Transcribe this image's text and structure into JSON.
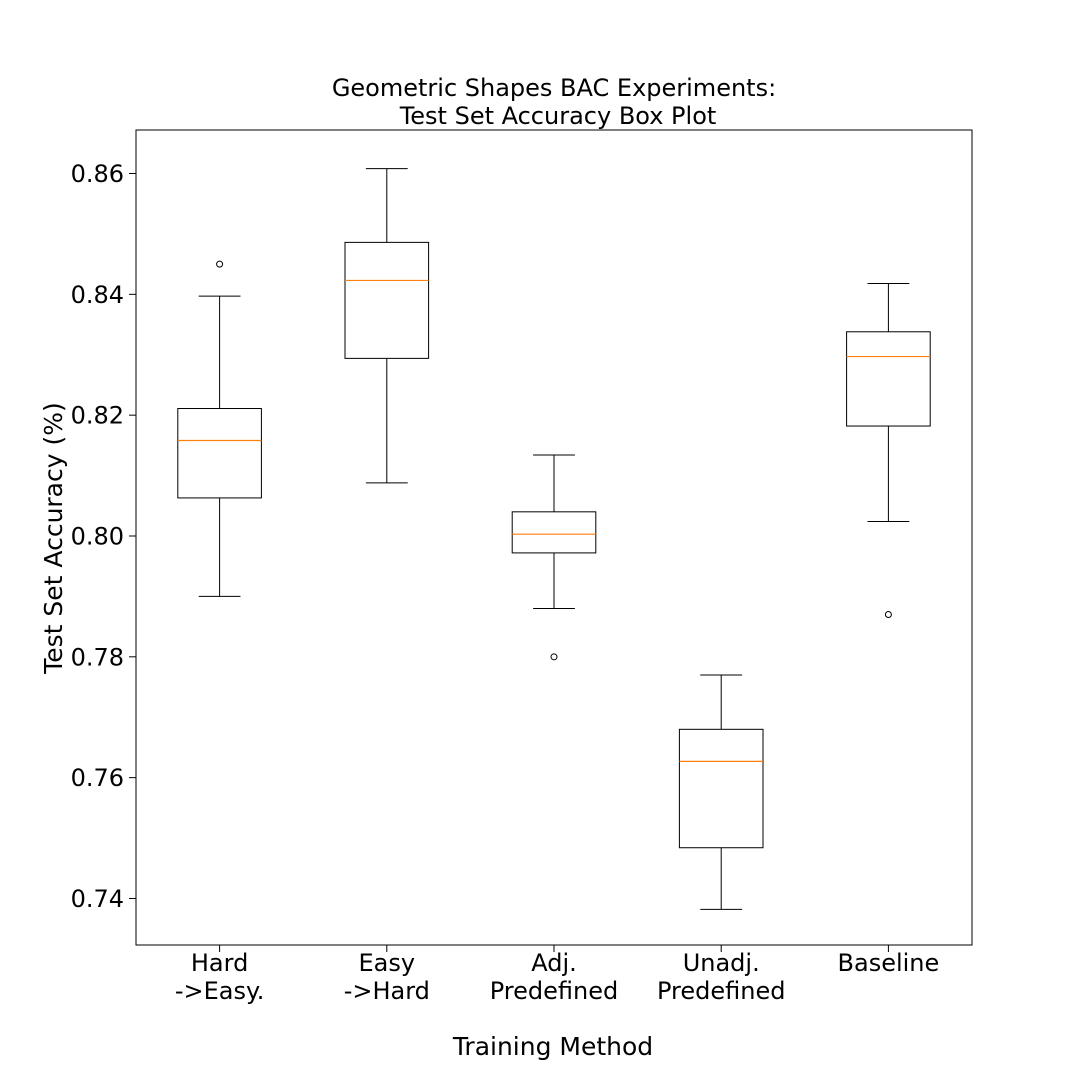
{
  "chart_data": {
    "type": "box",
    "title": [
      "Geometric Shapes BAC Experiments:",
      "Test Set Accuracy Box Plot"
    ],
    "xlabel": "Training Method",
    "ylabel": "Test Set Accuracy (%)",
    "ylim": [
      0.7323,
      0.8672
    ],
    "yticks": [
      "0.74",
      "0.76",
      "0.78",
      "0.80",
      "0.82",
      "0.84",
      "0.86"
    ],
    "grid": false,
    "categories": [
      [
        "Hard",
        "->Easy."
      ],
      [
        "Easy",
        "->Hard"
      ],
      [
        "Adj.",
        "Predefined"
      ],
      [
        "Unadj.",
        "Predefined"
      ],
      [
        "Baseline"
      ]
    ],
    "boxes": [
      {
        "whisker_low": 0.79,
        "q1": 0.8063,
        "median": 0.8158,
        "q3": 0.8211,
        "whisker_high": 0.8397,
        "outliers": [
          0.845
        ]
      },
      {
        "whisker_low": 0.8088,
        "q1": 0.8294,
        "median": 0.8423,
        "q3": 0.8486,
        "whisker_high": 0.8608,
        "outliers": []
      },
      {
        "whisker_low": 0.788,
        "q1": 0.7972,
        "median": 0.8003,
        "q3": 0.804,
        "whisker_high": 0.8134,
        "outliers": [
          0.78
        ]
      },
      {
        "whisker_low": 0.7382,
        "q1": 0.7484,
        "median": 0.7627,
        "q3": 0.768,
        "whisker_high": 0.777,
        "outliers": []
      },
      {
        "whisker_low": 0.8024,
        "q1": 0.8182,
        "median": 0.8297,
        "q3": 0.8338,
        "whisker_high": 0.8418,
        "outliers": [
          0.787
        ]
      }
    ],
    "colors": {
      "median": "#ff7f0e",
      "box": "#000000"
    }
  }
}
